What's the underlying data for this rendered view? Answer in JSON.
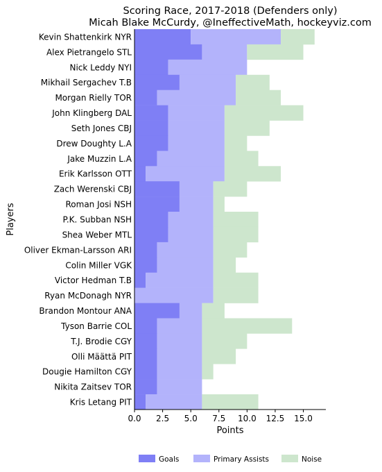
{
  "chart_data": {
    "type": "bar",
    "orientation": "horizontal",
    "stacked": true,
    "title": "Scoring Race, 2017-2018 (Defenders only)",
    "subtitle": "Micah Blake McCurdy, @IneffectiveMath, hockeyviz.com",
    "xlabel": "Points",
    "ylabel": "Players",
    "xlim": [
      0,
      17
    ],
    "xticks": [
      0,
      2.5,
      5,
      7.5,
      10,
      12.5,
      15
    ],
    "xtick_labels": [
      "0.0",
      "2.5",
      "5.0",
      "7.5",
      "10.0",
      "12.5",
      "15.0"
    ],
    "legend_position": "bottom",
    "categories": [
      "Kevin Shattenkirk NYR",
      "Alex Pietrangelo STL",
      "Nick Leddy NYI",
      "Mikhail Sergachev T.B",
      "Morgan Rielly TOR",
      "John Klingberg DAL",
      "Seth Jones CBJ",
      "Drew Doughty L.A",
      "Jake Muzzin L.A",
      "Erik Karlsson OTT",
      "Zach Werenski CBJ",
      "Roman Josi NSH",
      "P.K. Subban NSH",
      "Shea Weber MTL",
      "Oliver Ekman-Larsson ARI",
      "Colin Miller VGK",
      "Victor Hedman T.B",
      "Ryan McDonagh NYR",
      "Brandon Montour ANA",
      "Tyson Barrie COL",
      "T.J. Brodie CGY",
      "Olli Määttä PIT",
      "Dougie Hamilton CGY",
      "Nikita Zaitsev TOR",
      "Kris Letang PIT"
    ],
    "series": [
      {
        "name": "Goals",
        "color": "#7f7ff5",
        "values": [
          5,
          6,
          3,
          4,
          2,
          3,
          3,
          3,
          2,
          1,
          4,
          4,
          3,
          3,
          2,
          2,
          1,
          0,
          4,
          2,
          2,
          2,
          2,
          2,
          1
        ]
      },
      {
        "name": "Primary Assists",
        "color": "#b3b3fb",
        "values": [
          8,
          4,
          7,
          5,
          7,
          5,
          5,
          5,
          6,
          7,
          3,
          3,
          4,
          4,
          5,
          5,
          6,
          7,
          2,
          4,
          4,
          4,
          4,
          4,
          5
        ]
      },
      {
        "name": "Noise",
        "color": "#cde6cd",
        "values": [
          3,
          5,
          0,
          3,
          4,
          7,
          4,
          2,
          3,
          5,
          3,
          1,
          4,
          4,
          3,
          2,
          4,
          4,
          2,
          8,
          4,
          3,
          1,
          0,
          5
        ]
      }
    ]
  }
}
